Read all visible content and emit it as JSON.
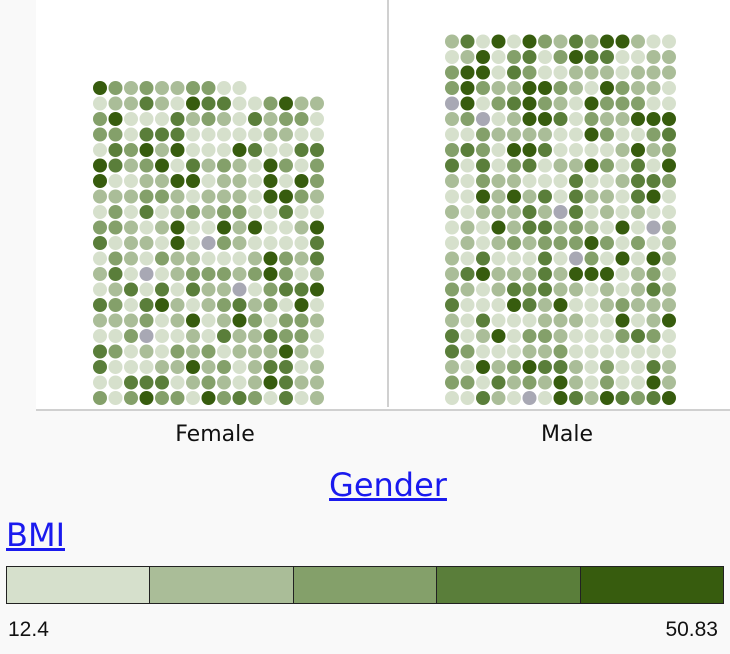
{
  "chart_data": {
    "type": "waffle",
    "x_axis": {
      "title": "Gender",
      "categories": [
        "Female",
        "Male"
      ]
    },
    "color_legend": {
      "title": "BMI",
      "min_label": "12.4",
      "max_label": "50.83",
      "range": [
        12.4,
        50.83
      ],
      "colors": [
        "#d6e0cc",
        "#aabd98",
        "#84a06a",
        "#5a7e3a",
        "#375c0e"
      ],
      "missing_color": "#a8a8b4"
    },
    "series": [
      {
        "category": "Female",
        "count": 310,
        "columns": 15
      },
      {
        "category": "Male",
        "count": 360,
        "columns": 15
      }
    ]
  }
}
